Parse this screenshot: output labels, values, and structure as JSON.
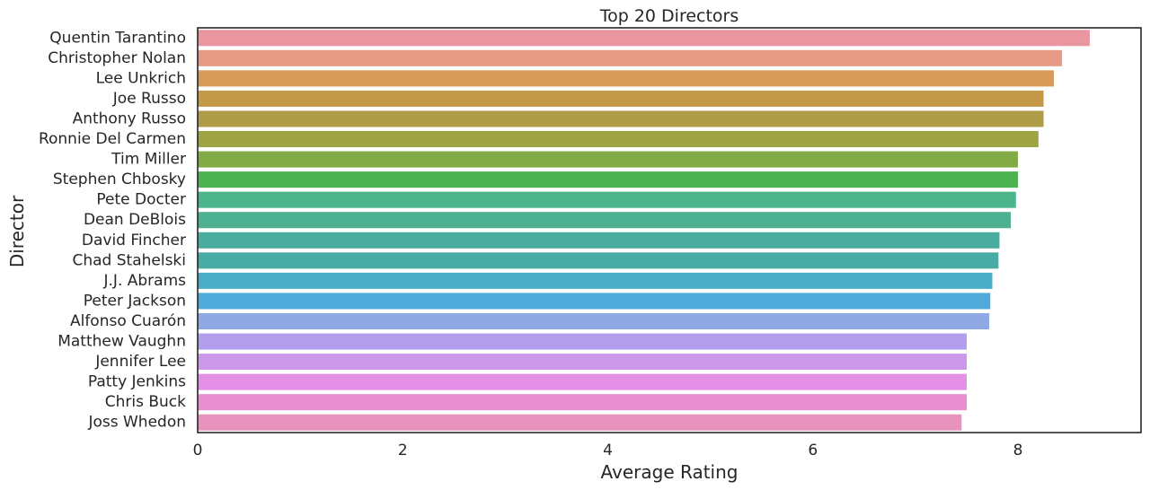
{
  "chart_data": {
    "type": "bar",
    "orientation": "horizontal",
    "title": "Top 20 Directors",
    "xlabel": "Average Rating",
    "ylabel": "Director",
    "xlim": [
      0,
      9.2
    ],
    "xticks": [
      0,
      2,
      4,
      6,
      8
    ],
    "grid": false,
    "categories": [
      "Quentin Tarantino",
      "Christopher Nolan",
      "Lee Unkrich",
      "Joe Russo",
      "Anthony Russo",
      "Ronnie Del Carmen",
      "Tim Miller",
      "Stephen Chbosky",
      "Pete Docter",
      "Dean DeBlois",
      "David Fincher",
      "Chad Stahelski",
      "J.J. Abrams",
      "Peter Jackson",
      "Alfonso Cuarón",
      "Matthew Vaughn",
      "Jennifer Lee",
      "Patty Jenkins",
      "Chris Buck",
      "Joss Whedon"
    ],
    "values": [
      8.7,
      8.43,
      8.35,
      8.25,
      8.25,
      8.2,
      8.0,
      8.0,
      7.98,
      7.93,
      7.82,
      7.81,
      7.75,
      7.73,
      7.72,
      7.5,
      7.5,
      7.5,
      7.5,
      7.45
    ],
    "colors": [
      "#ea96a0",
      "#e79a86",
      "#d89a58",
      "#c49a48",
      "#af9c47",
      "#9ea343",
      "#82aa45",
      "#4db352",
      "#4cb58c",
      "#4cb091",
      "#4aac9e",
      "#48aba5",
      "#4aadc6",
      "#4fa9d9",
      "#8fa9e5",
      "#b29eed",
      "#cc99ea",
      "#e38fe5",
      "#e78fd0",
      "#e893bd"
    ]
  }
}
